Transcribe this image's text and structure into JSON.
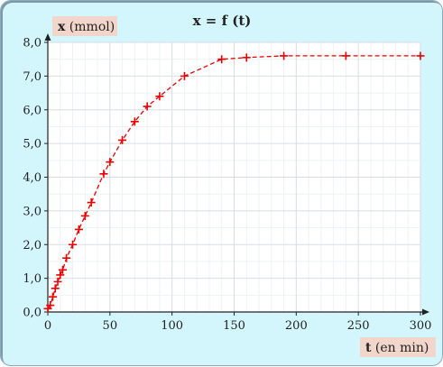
{
  "chart_data": {
    "type": "scatter",
    "title": "x = f (t)",
    "ylabel_bold": "x",
    "ylabel_rest": " (mmol)",
    "xlabel_bold": "t",
    "xlabel_rest": " (en min)",
    "xlim": [
      0,
      300
    ],
    "ylim": [
      0,
      8
    ],
    "xticks": [
      0,
      50,
      100,
      150,
      200,
      250,
      300
    ],
    "xtick_labels": [
      "0",
      "50",
      "100",
      "150",
      "200",
      "250",
      "300"
    ],
    "yticks": [
      0,
      1,
      2,
      3,
      4,
      5,
      6,
      7,
      8
    ],
    "ytick_labels": [
      "0,0",
      "1,0",
      "2,0",
      "3,0",
      "4,0",
      "5,0",
      "6,0",
      "7,0",
      "8,0"
    ],
    "grid": true,
    "series": [
      {
        "color": "#ee0000",
        "marker": "plus",
        "line": "dashed",
        "x": [
          0,
          2,
          4,
          6,
          8,
          10,
          12,
          15,
          20,
          25,
          30,
          35,
          45,
          50,
          60,
          70,
          80,
          90,
          110,
          140,
          160,
          190,
          240,
          300
        ],
        "y": [
          0.1,
          0.2,
          0.45,
          0.7,
          0.9,
          1.1,
          1.25,
          1.6,
          2.0,
          2.45,
          2.85,
          3.25,
          4.1,
          4.45,
          5.1,
          5.65,
          6.1,
          6.4,
          7.0,
          7.5,
          7.55,
          7.6,
          7.6,
          7.6
        ]
      }
    ]
  }
}
